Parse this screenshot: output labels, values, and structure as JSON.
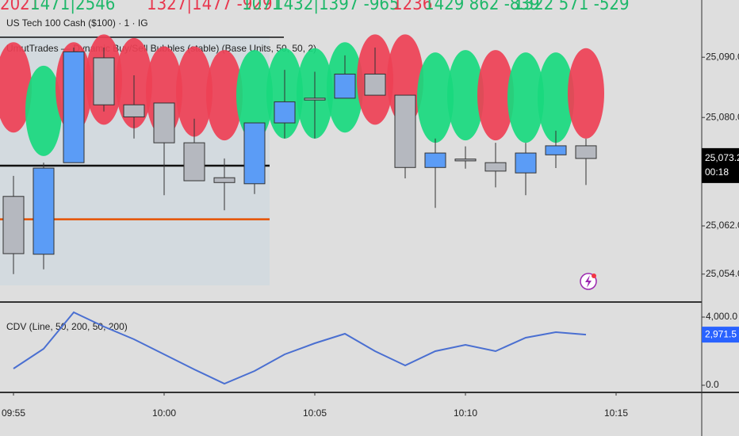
{
  "header": {
    "symbol": "US Tech 100 Cash ($100) · 1 · IG",
    "indicator": "UmutTrades — Dynamic Buy/Sell Bubbles (stable) (Base Units, 50, 50, 2)",
    "annotations": [
      {
        "text": "2021",
        "color": "#e8384f"
      },
      {
        "text": "1471|2546",
        "color": "#1fb86a"
      },
      {
        "text": "1327|1477 -929",
        "color": "#e8384f"
      },
      {
        "text": "1071",
        "color": "#1fb86a"
      },
      {
        "text": "1432|1397 -965",
        "color": "#1fb86a"
      },
      {
        "text": "1236",
        "color": "#e8384f"
      },
      {
        "text": "1429 862 -839",
        "color": "#1fb86a"
      },
      {
        "text": "1322 571 -529",
        "color": "#1fb86a"
      }
    ]
  },
  "chart_data": [
    {
      "type": "candlestick",
      "x": [
        "09:55",
        "09:56",
        "09:57",
        "09:58",
        "09:59",
        "10:00",
        "10:01",
        "10:02",
        "10:03",
        "10:04",
        "10:05",
        "10:06",
        "10:07",
        "10:08",
        "10:09",
        "10:10",
        "10:11",
        "10:12",
        "10:13",
        "10:14"
      ],
      "open": [
        25066.9,
        25057.3,
        25072.5,
        25089.9,
        25082.1,
        25082.4,
        25075.8,
        25070.0,
        25069.0,
        25079.1,
        25083.2,
        25083.2,
        25087.2,
        25083.7,
        25071.7,
        25073.1,
        25072.5,
        25070.8,
        25073.8,
        25075.3
      ],
      "high": [
        25070.3,
        25072.5,
        25091.6,
        25091.6,
        25087.0,
        25082.4,
        25079.8,
        25073.2,
        25079.1,
        25087.9,
        25087.6,
        25090.3,
        25091.6,
        25083.7,
        25076.5,
        25075.2,
        25075.8,
        25075.8,
        25077.8,
        25076.5
      ],
      "low": [
        25054.0,
        25054.8,
        25072.5,
        25081.0,
        25076.5,
        25067.1,
        25069.5,
        25064.6,
        25067.3,
        25076.5,
        25076.5,
        25083.2,
        25083.7,
        25069.9,
        25065.0,
        25071.5,
        25068.4,
        25067.1,
        25071.6,
        25068.8
      ],
      "close": [
        25057.4,
        25071.6,
        25090.9,
        25082.1,
        25080.1,
        25075.8,
        25069.5,
        25069.2,
        25079.1,
        25082.6,
        25082.9,
        25087.2,
        25083.7,
        25071.7,
        25074.1,
        25072.8,
        25071.1,
        25074.1,
        25075.3,
        25073.2
      ],
      "up_color": "#5b9cf6",
      "down_color": "#b5b8bf",
      "bubbles": {
        "values": [
          25085.0,
          25081.1,
          25085.0,
          25086.3,
          25085.7,
          25084.3,
          25084.3,
          25083.7,
          25083.7,
          25084.0,
          25084.0,
          25085.0,
          25086.3,
          25086.3,
          25083.3,
          25083.7,
          25083.7,
          25083.3,
          25083.3,
          25084.0
        ],
        "colors": [
          "#ee4055",
          "#18d97e",
          "#ee4055",
          "#ee4055",
          "#ee4055",
          "#ee4055",
          "#ee4055",
          "#ee4055",
          "#18d97e",
          "#18d97e",
          "#18d97e",
          "#18d97e",
          "#ee4055",
          "#ee4055",
          "#18d97e",
          "#18d97e",
          "#ee4055",
          "#18d97e",
          "#18d97e",
          "#ee4055"
        ]
      },
      "levels": [
        {
          "value": 25072.0,
          "color": "#111111"
        },
        {
          "value": 25063.1,
          "color": "#e65100"
        }
      ],
      "ylim": [
        25049.5,
        25099.5
      ],
      "yticks": [
        {
          "value": 25090,
          "label": "25,090.0"
        },
        {
          "value": 25080,
          "label": "25,080.0"
        },
        {
          "value": 25062,
          "label": "25,062.0"
        },
        {
          "value": 25054,
          "label": "25,054.0"
        }
      ],
      "last_price": {
        "value": 25073.2,
        "label": "25,073.2"
      },
      "countdown": "00:18",
      "xticks": [
        "09:55",
        "10:00",
        "10:05",
        "10:10",
        "10:15"
      ]
    },
    {
      "type": "line",
      "title": "CDV (Line, 50, 200, 50, 200)",
      "x": [
        "09:55",
        "09:56",
        "09:57",
        "09:58",
        "09:59",
        "10:00",
        "10:01",
        "10:02",
        "10:03",
        "10:04",
        "10:05",
        "10:06",
        "10:07",
        "10:08",
        "10:09",
        "10:10",
        "10:11",
        "10:12",
        "10:13",
        "10:14"
      ],
      "values": [
        977,
        2140,
        4279,
        3442,
        2698,
        1814,
        930,
        93,
        837,
        1814,
        2465,
        3023,
        2000,
        1163,
        2000,
        2372,
        2000,
        2791,
        3116,
        2971.5
      ],
      "color": "#4a6fd1",
      "ylim": [
        -326,
        4791
      ],
      "yticks": [
        {
          "value": 4000,
          "label": "4,000.0"
        },
        {
          "value": 0,
          "label": "0.0"
        }
      ],
      "last_value": {
        "value": 2971.5,
        "label": "2,971.5"
      }
    }
  ]
}
